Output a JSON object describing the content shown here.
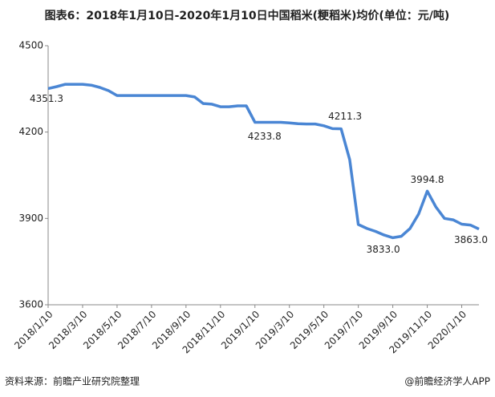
{
  "chart_data": {
    "type": "line",
    "title": "图表6：2018年1月10日-2020年1月10日中国稻米(粳稻米)均价(单位：元/吨)",
    "source": "资料来源：前瞻产业研究院整理",
    "credit": "@前瞻经济学人APP",
    "categories": [
      "2018/1/10",
      null,
      null,
      null,
      "2018/3/10",
      null,
      null,
      null,
      "2018/5/10",
      null,
      null,
      null,
      "2018/7/10",
      null,
      null,
      null,
      "2018/9/10",
      null,
      null,
      null,
      "2018/11/10",
      null,
      null,
      null,
      "2019/1/10",
      null,
      null,
      null,
      "2019/3/10",
      null,
      null,
      null,
      "2019/5/10",
      null,
      null,
      null,
      "2019/7/10",
      null,
      null,
      null,
      "2019/9/10",
      null,
      null,
      null,
      "2019/11/10",
      null,
      null,
      null,
      "2020/1/10",
      null,
      null
    ],
    "values": [
      4351.3,
      4358,
      4366,
      4366,
      4366,
      4363,
      4355,
      4344,
      4327,
      4327,
      4327,
      4327,
      4327,
      4327,
      4327,
      4327,
      4327,
      4322,
      4299,
      4297,
      4288,
      4288,
      4291,
      4291,
      4233.8,
      4233.8,
      4233.8,
      4233.8,
      4232,
      4229,
      4228,
      4228,
      4222,
      4212,
      4211.3,
      4104,
      3879,
      3865,
      3855,
      3842,
      3833,
      3838,
      3865,
      3915,
      3994.8,
      3940,
      3900,
      3895,
      3880,
      3877,
      3863
    ],
    "value_labels": [
      "4351.3",
      null,
      null,
      null,
      null,
      null,
      null,
      null,
      null,
      null,
      null,
      null,
      null,
      null,
      null,
      null,
      null,
      null,
      null,
      null,
      null,
      null,
      null,
      null,
      "4233.8",
      null,
      null,
      null,
      null,
      null,
      null,
      null,
      null,
      null,
      "4211.3",
      null,
      null,
      null,
      null,
      null,
      "3833.0",
      null,
      null,
      null,
      "3994.8",
      null,
      null,
      null,
      null,
      null,
      "3863.0"
    ],
    "color": "#4a86d4",
    "ylim": [
      3600,
      4500
    ],
    "yticks": [
      3600,
      3900,
      4200,
      4500
    ],
    "grid": false
  }
}
